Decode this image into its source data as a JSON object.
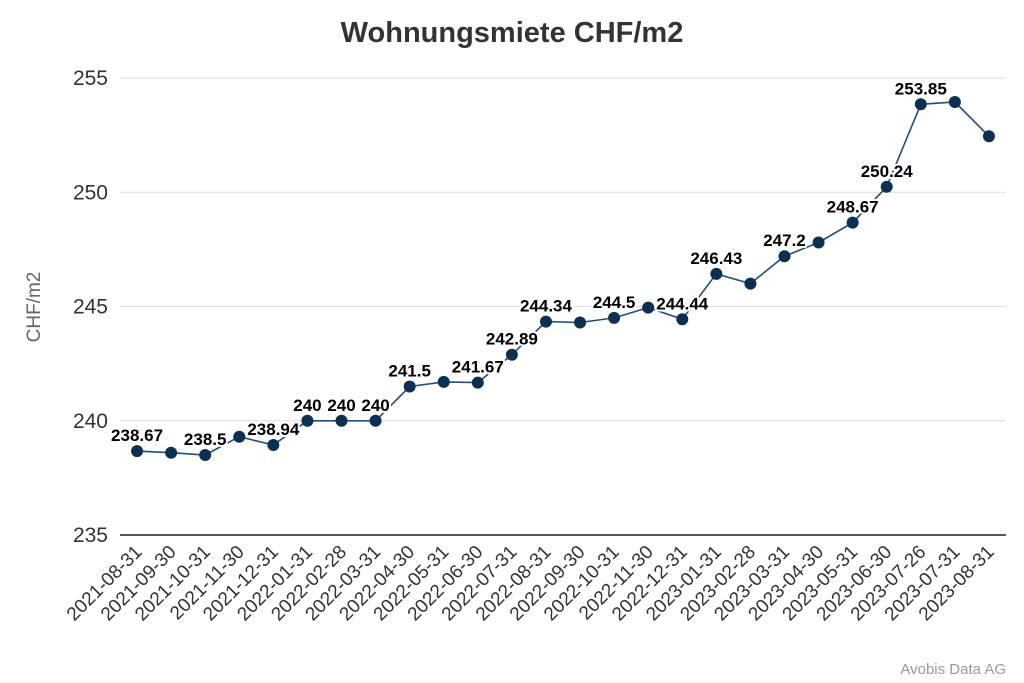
{
  "chart_data": {
    "type": "line",
    "title": "Wohnungsmiete CHF/m2",
    "xlabel": "",
    "ylabel": "CHF/m2",
    "ylim": [
      235,
      256
    ],
    "yticks": [
      235,
      240,
      245,
      250,
      255
    ],
    "grid": true,
    "legend": "none",
    "x": [
      "2021-08-31",
      "2021-09-30",
      "2021-10-31",
      "2021-11-30",
      "2021-12-31",
      "2022-01-31",
      "2022-02-28",
      "2022-03-31",
      "2022-04-30",
      "2022-05-31",
      "2022-06-30",
      "2022-07-31",
      "2022-08-31",
      "2022-09-30",
      "2022-10-31",
      "2022-11-30",
      "2022-12-31",
      "2023-01-31",
      "2023-02-28",
      "2023-03-31",
      "2023-04-30",
      "2023-05-31",
      "2023-06-30",
      "2023-07-26",
      "2023-07-31",
      "2023-08-31"
    ],
    "series": [
      {
        "values": [
          238.67,
          238.6,
          238.5,
          239.3,
          238.94,
          240,
          240,
          240,
          241.5,
          241.7,
          241.67,
          242.89,
          244.34,
          244.3,
          244.5,
          244.95,
          244.44,
          246.43,
          246.0,
          247.2,
          247.8,
          248.67,
          250.24,
          253.85,
          253.95,
          252.45
        ],
        "labels": [
          "238.67",
          "",
          "238.5",
          "",
          "238.94",
          "240",
          "240",
          "240",
          "241.5",
          "",
          "241.67",
          "242.89",
          "244.34",
          "",
          "244.5",
          "",
          "244.44",
          "246.43",
          "",
          "247.2",
          "",
          "248.67",
          "250.24",
          "253.85",
          "",
          ""
        ]
      }
    ],
    "colors": {
      "line": "#1f4e79",
      "marker": "#0d2f52",
      "grid": "#dddddd",
      "axis": "#222222"
    }
  },
  "credit": "Avobis Data AG"
}
